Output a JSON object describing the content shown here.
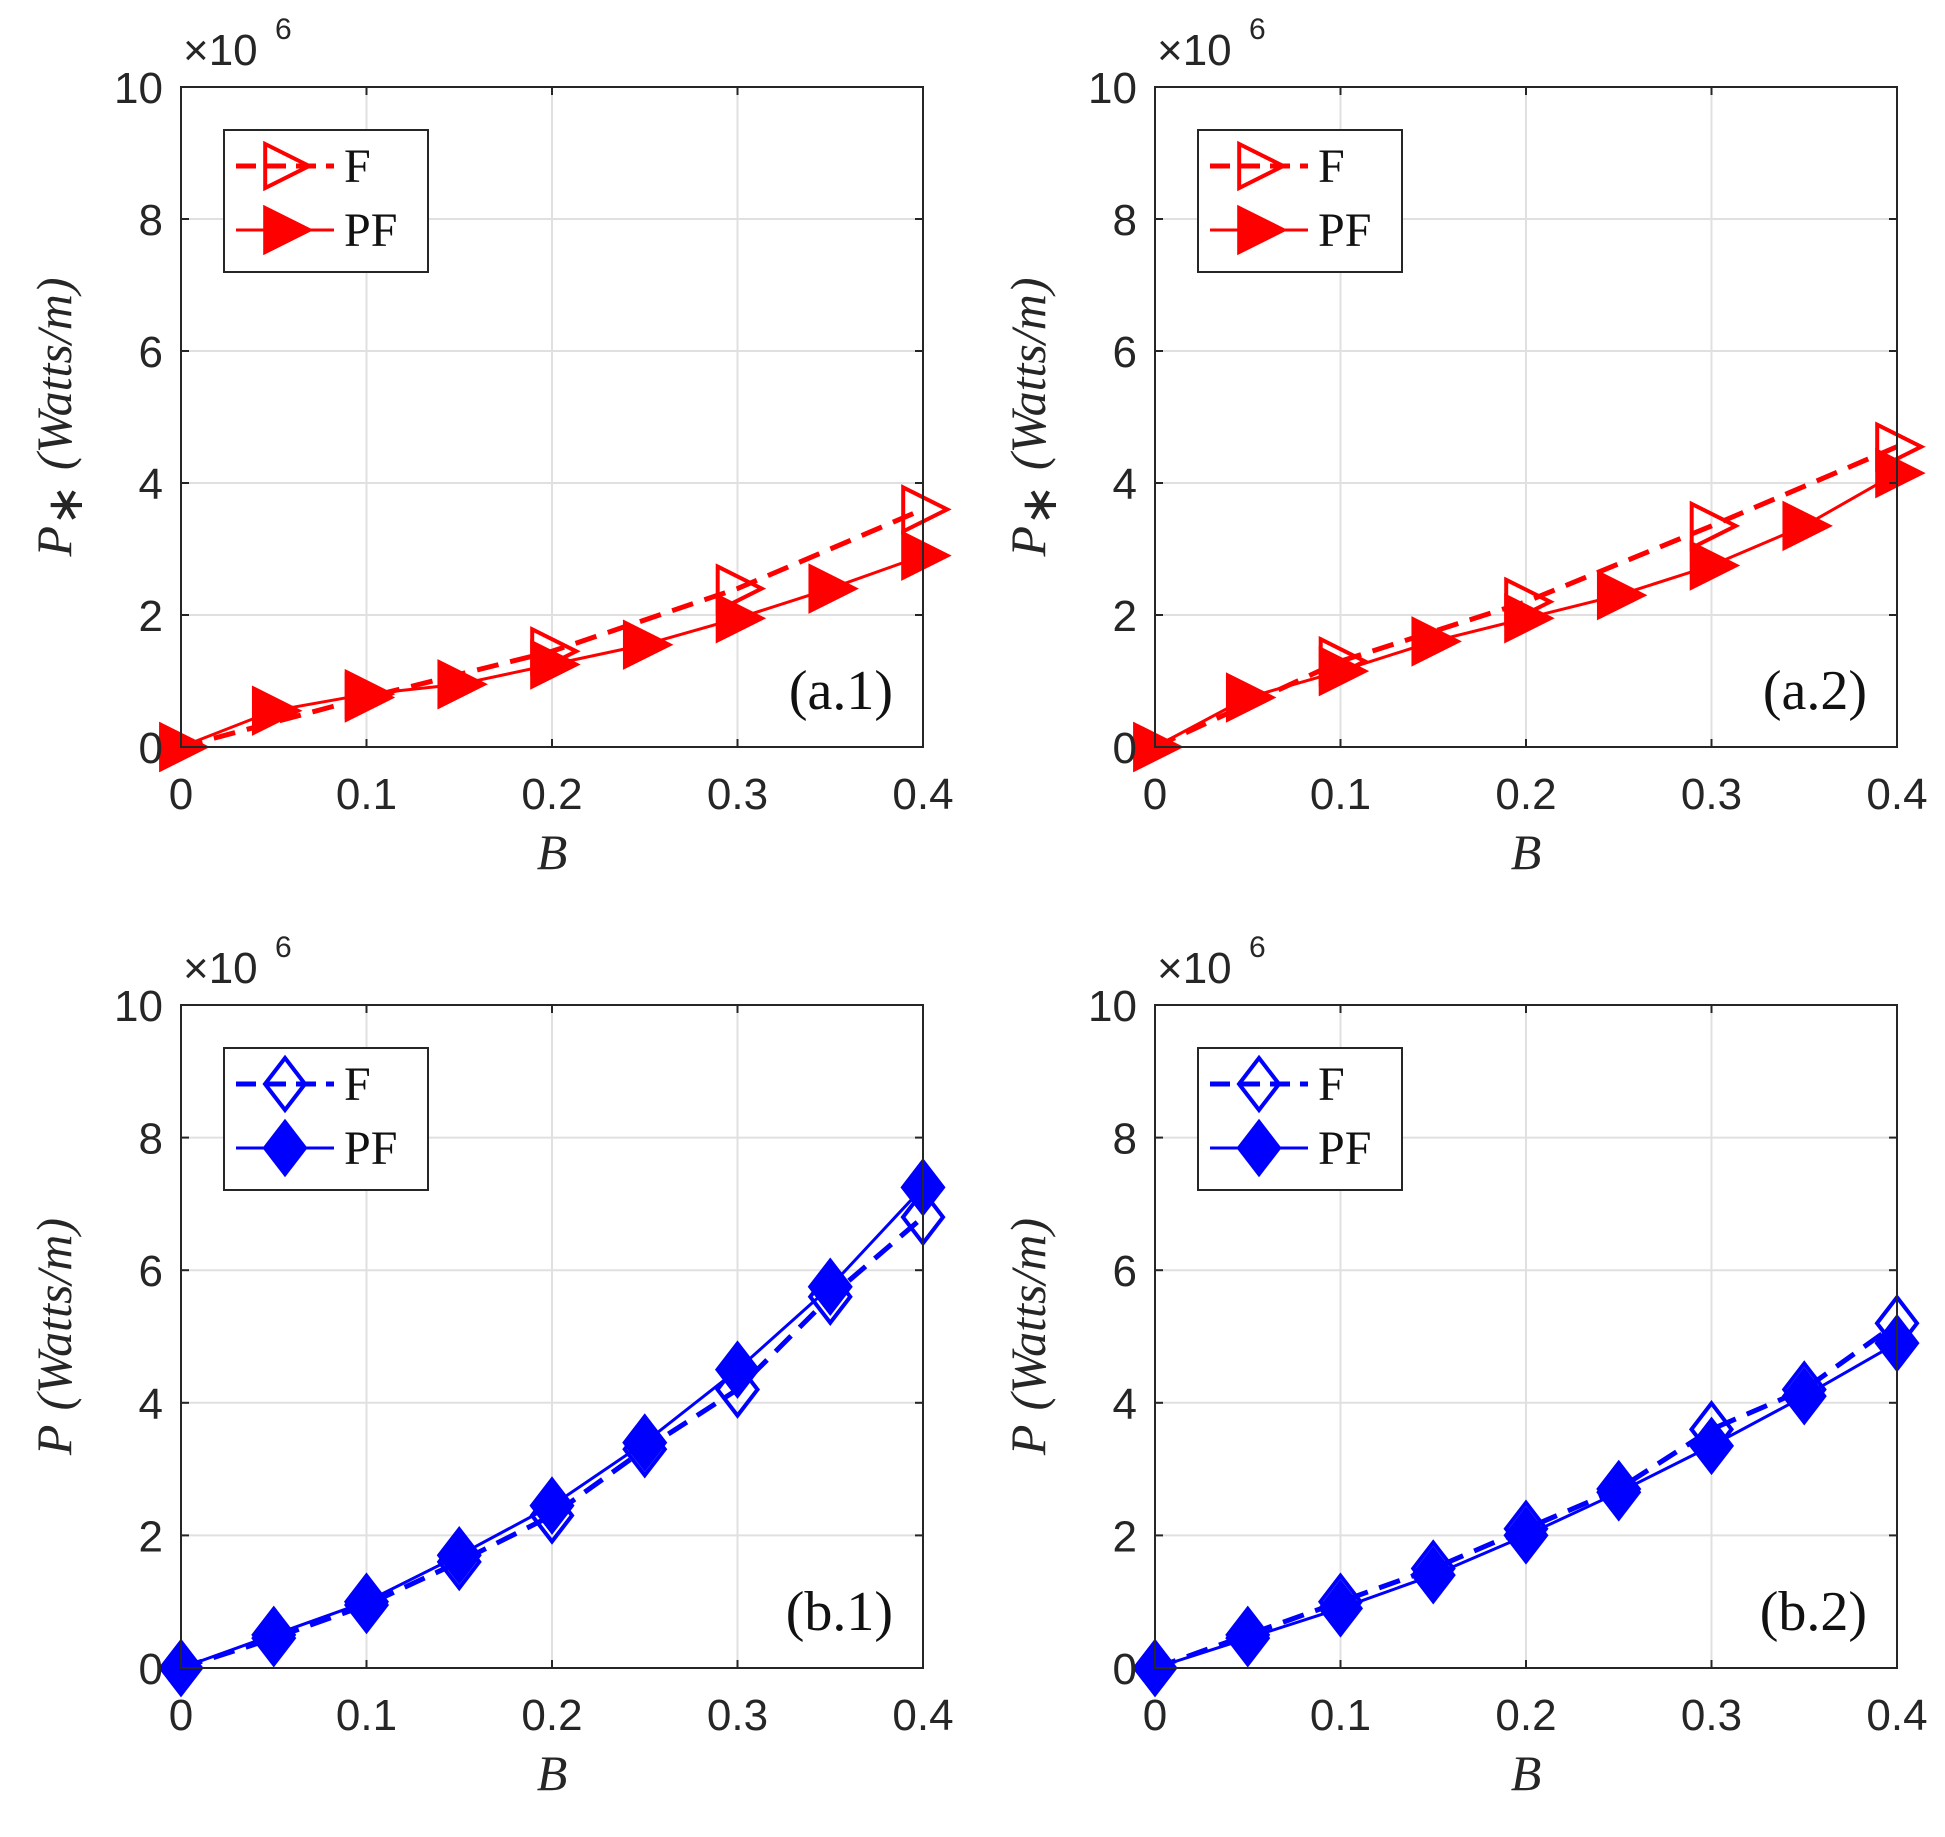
{
  "colors": {
    "red": "#ff0000",
    "blue": "#0000ff",
    "grid": "#e0e0e0",
    "axis": "#262626"
  },
  "chart_data": [
    {
      "type": "line",
      "panel_label": "(a.1)",
      "color": "#ff0000",
      "marker": "triangle-right",
      "xlabel": "B",
      "ylabel_var": "P",
      "ylabel_sub": "∗",
      "ylabel_unit": "(Watts/m)",
      "y_exponent_base": "×10",
      "y_exponent": "6",
      "xlim": [
        0,
        0.4
      ],
      "ylim": [
        0,
        10
      ],
      "xticks": [
        "0",
        "0.1",
        "0.2",
        "0.3",
        "0.4"
      ],
      "yticks": [
        "0",
        "2",
        "4",
        "6",
        "8",
        "10"
      ],
      "legend": [
        "F",
        "PF"
      ],
      "series": [
        {
          "name": "F",
          "style": "dashed-open",
          "x": [
            0,
            0.1,
            0.2,
            0.3,
            0.4
          ],
          "y": [
            0,
            0.75,
            1.45,
            2.4,
            3.6
          ]
        },
        {
          "name": "PF",
          "style": "solid-filled",
          "x": [
            0,
            0.05,
            0.1,
            0.15,
            0.2,
            0.25,
            0.3,
            0.35,
            0.4
          ],
          "y": [
            0,
            0.55,
            0.8,
            0.95,
            1.25,
            1.55,
            1.95,
            2.4,
            2.9
          ]
        }
      ]
    },
    {
      "type": "line",
      "panel_label": "(a.2)",
      "color": "#ff0000",
      "marker": "triangle-right",
      "xlabel": "B",
      "ylabel_var": "P",
      "ylabel_sub": "∗",
      "ylabel_unit": "(Watts/m)",
      "y_exponent_base": "×10",
      "y_exponent": "6",
      "xlim": [
        0,
        0.4
      ],
      "ylim": [
        0,
        10
      ],
      "xticks": [
        "0",
        "0.1",
        "0.2",
        "0.3",
        "0.4"
      ],
      "yticks": [
        "0",
        "2",
        "4",
        "6",
        "8",
        "10"
      ],
      "legend": [
        "F",
        "PF"
      ],
      "series": [
        {
          "name": "F",
          "style": "dashed-open",
          "x": [
            0,
            0.1,
            0.2,
            0.3,
            0.4
          ],
          "y": [
            0,
            1.3,
            2.2,
            3.35,
            4.55
          ]
        },
        {
          "name": "PF",
          "style": "solid-filled",
          "x": [
            0,
            0.05,
            0.1,
            0.15,
            0.2,
            0.25,
            0.3,
            0.35,
            0.4
          ],
          "y": [
            0,
            0.75,
            1.15,
            1.6,
            1.95,
            2.3,
            2.75,
            3.35,
            4.15
          ]
        }
      ]
    },
    {
      "type": "line",
      "panel_label": "(b.1)",
      "color": "#0000ff",
      "marker": "diamond",
      "xlabel": "B",
      "ylabel_var": "P",
      "ylabel_sub": "",
      "ylabel_unit": "(Watts/m)",
      "y_exponent_base": "×10",
      "y_exponent": "6",
      "xlim": [
        0,
        0.4
      ],
      "ylim": [
        0,
        10
      ],
      "xticks": [
        "0",
        "0.1",
        "0.2",
        "0.3",
        "0.4"
      ],
      "yticks": [
        "0",
        "2",
        "4",
        "6",
        "8",
        "10"
      ],
      "legend": [
        "F",
        "PF"
      ],
      "series": [
        {
          "name": "F",
          "style": "dashed-open",
          "x": [
            0,
            0.05,
            0.1,
            0.15,
            0.2,
            0.25,
            0.3,
            0.35,
            0.4
          ],
          "y": [
            0,
            0.45,
            0.95,
            1.6,
            2.3,
            3.3,
            4.2,
            5.6,
            6.8
          ]
        },
        {
          "name": "PF",
          "style": "solid-filled",
          "x": [
            0,
            0.05,
            0.1,
            0.15,
            0.2,
            0.25,
            0.3,
            0.35,
            0.4
          ],
          "y": [
            0,
            0.5,
            1.0,
            1.7,
            2.45,
            3.4,
            4.5,
            5.75,
            7.25
          ]
        }
      ]
    },
    {
      "type": "line",
      "panel_label": "(b.2)",
      "color": "#0000ff",
      "marker": "diamond",
      "xlabel": "B",
      "ylabel_var": "P",
      "ylabel_sub": "",
      "ylabel_unit": "(Watts/m)",
      "y_exponent_base": "×10",
      "y_exponent": "6",
      "xlim": [
        0,
        0.4
      ],
      "ylim": [
        0,
        10
      ],
      "xticks": [
        "0",
        "0.1",
        "0.2",
        "0.3",
        "0.4"
      ],
      "yticks": [
        "0",
        "2",
        "4",
        "6",
        "8",
        "10"
      ],
      "legend": [
        "F",
        "PF"
      ],
      "series": [
        {
          "name": "F",
          "style": "dashed-open",
          "x": [
            0,
            0.05,
            0.1,
            0.15,
            0.2,
            0.25,
            0.3,
            0.35,
            0.4
          ],
          "y": [
            0,
            0.5,
            1.0,
            1.5,
            2.1,
            2.7,
            3.6,
            4.2,
            5.2
          ]
        },
        {
          "name": "PF",
          "style": "solid-filled",
          "x": [
            0,
            0.05,
            0.1,
            0.15,
            0.2,
            0.25,
            0.3,
            0.35,
            0.4
          ],
          "y": [
            0,
            0.45,
            0.9,
            1.4,
            2.0,
            2.65,
            3.35,
            4.1,
            4.9
          ]
        }
      ]
    }
  ]
}
